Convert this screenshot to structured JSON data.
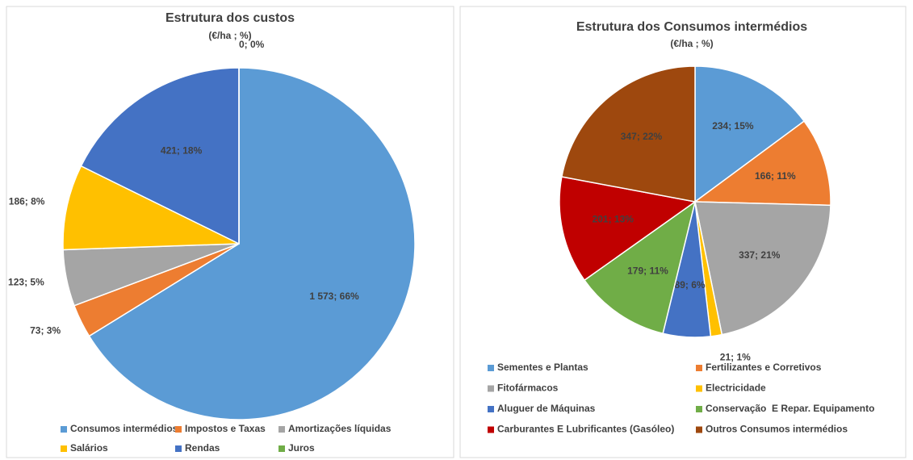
{
  "chart_data": [
    {
      "type": "pie",
      "title": "Estrutura dos custos",
      "subtitle": "(€/ha ; %)",
      "categories": [
        "Consumos intermédios",
        "Impostos e Taxas",
        "Amortizações líquidas",
        "Salários",
        "Rendas",
        "Juros"
      ],
      "values": [
        1573,
        73,
        123,
        186,
        421,
        0
      ],
      "value_labels": [
        "1 573; 66%",
        "73; 3%",
        "123; 5%",
        "186; 8%",
        "421; 18%",
        "0; 0%"
      ],
      "colors": [
        "#5b9bd5",
        "#ed7d31",
        "#a5a5a5",
        "#ffc000",
        "#4472c4",
        "#70ad47"
      ],
      "legend": "bottom"
    },
    {
      "type": "pie",
      "title": "Estrutura dos Consumos intermédios",
      "subtitle": "(€/ha ; %)",
      "categories": [
        "Sementes e Plantas",
        "Fertilizantes e Corretivos",
        "Fitofármacos",
        "Electricidade",
        "Aluguer de Máquinas",
        "Conservação  E Repar. Equipamento",
        "Carburantes E Lubrificantes (Gasóleo)",
        "Outros Consumos intermédios"
      ],
      "values": [
        234,
        166,
        337,
        21,
        89,
        179,
        201,
        347
      ],
      "value_labels": [
        "234; 15%",
        "166; 11%",
        "337; 21%",
        "21; 1%",
        "89; 6%",
        "179; 11%",
        "201; 13%",
        "347; 22%"
      ],
      "colors": [
        "#5b9bd5",
        "#ed7d31",
        "#a5a5a5",
        "#ffc000",
        "#4472c4",
        "#70ad47",
        "#c00000",
        "#9e480e"
      ],
      "legend": "bottom"
    }
  ]
}
